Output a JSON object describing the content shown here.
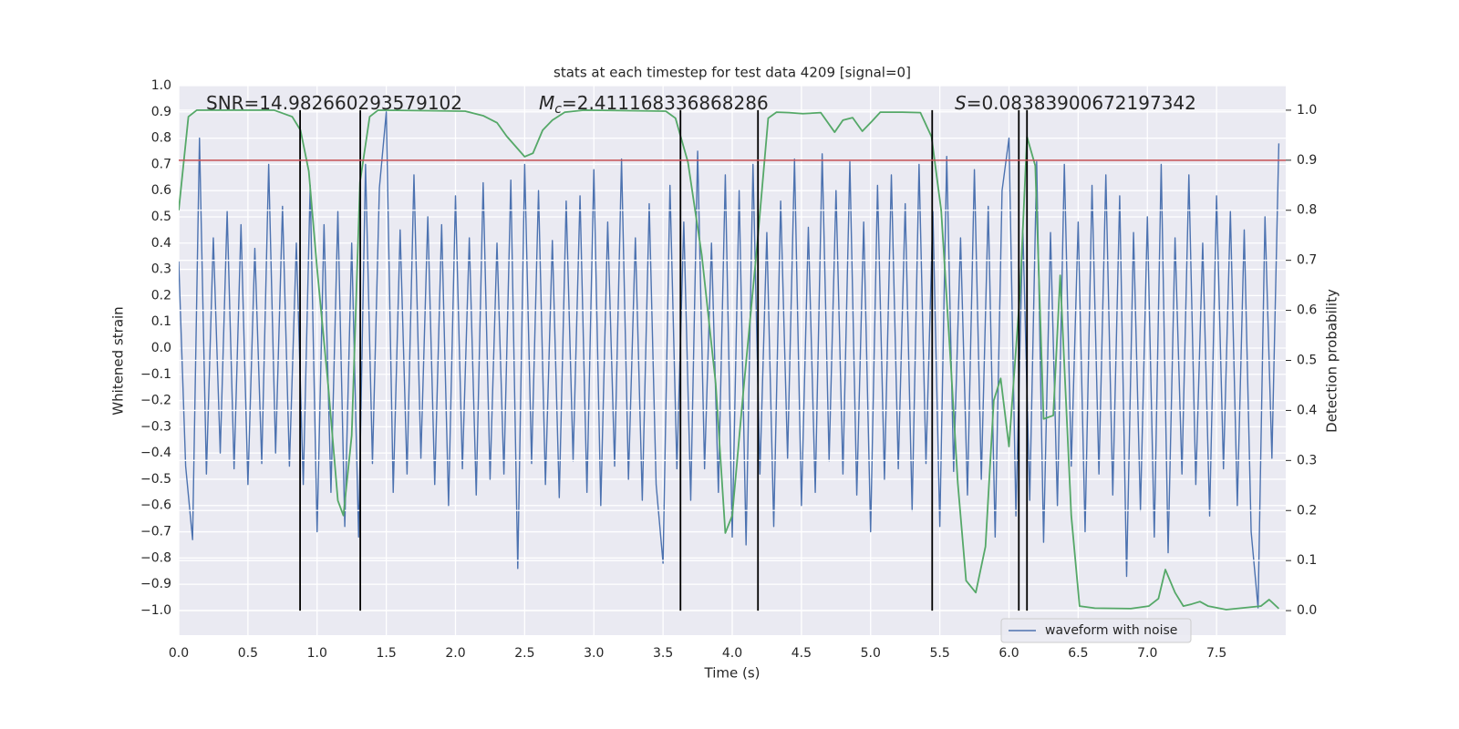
{
  "chart_data": {
    "type": "line",
    "title": "stats at each timestep for test data 4209 [signal=0]",
    "xlabel": "Time (s)",
    "ylabel": "Whitened strain",
    "y2label": "Detection probability",
    "xlim": [
      0,
      8
    ],
    "ylim": [
      -1.094,
      1.0
    ],
    "y2lim": [
      -0.049,
      1.049
    ],
    "grid": true,
    "legend": "best",
    "xticks": [
      {
        "value": 0,
        "label": "0.0"
      },
      0.5,
      {
        "value": 1,
        "label": "1.0"
      },
      1.5,
      {
        "value": 2,
        "label": "2.0"
      },
      2.5,
      {
        "value": 3,
        "label": "3.0"
      },
      3.5,
      {
        "value": 4,
        "label": "4.0"
      },
      4.5,
      {
        "value": 5,
        "label": "5.0"
      },
      5.5,
      {
        "value": 6,
        "label": "6.0"
      },
      6.5,
      {
        "value": 7,
        "label": "7.0"
      },
      7.5
    ],
    "yticks": [
      {
        "value": -1,
        "label": "−1.0"
      },
      {
        "value": -0.9,
        "label": "−0.9"
      },
      {
        "value": -0.8,
        "label": "−0.8"
      },
      {
        "value": -0.7,
        "label": "−0.7"
      },
      {
        "value": -0.6,
        "label": "−0.6"
      },
      {
        "value": -0.5,
        "label": "−0.5"
      },
      {
        "value": -0.4,
        "label": "−0.4"
      },
      {
        "value": -0.3,
        "label": "−0.3"
      },
      {
        "value": -0.2,
        "label": "−0.2"
      },
      {
        "value": -0.1,
        "label": "−0.1"
      },
      {
        "value": 0,
        "label": "0.0"
      },
      0.1,
      0.2,
      0.3,
      0.4,
      0.5,
      0.6,
      0.7,
      0.8,
      0.9,
      {
        "value": 1,
        "label": "1.0"
      }
    ],
    "y2ticks": [
      {
        "value": 0,
        "label": "0.0"
      },
      0.1,
      0.2,
      0.3,
      0.4,
      0.5,
      0.6,
      0.7,
      0.8,
      0.9,
      {
        "value": 1,
        "label": "1.0"
      }
    ],
    "annotations": [
      {
        "parts": [
          "SNR=14.982660293579102"
        ]
      },
      {
        "parts": [
          "M",
          "c",
          "=2.411168336868286"
        ]
      },
      {
        "parts": [
          "S",
          "=0.08383900672197342"
        ]
      }
    ],
    "hlines": [
      {
        "value": 0.9,
        "axis": "y2",
        "color": "#c44e52"
      }
    ],
    "vlines": {
      "color": "#000000",
      "axis": "y2",
      "range": [
        0,
        1
      ],
      "x": [
        0.877,
        1.312,
        3.626,
        4.186,
        5.445,
        6.071,
        6.13
      ]
    },
    "series": [
      {
        "name": "waveform with noise",
        "color": "#4c72b0",
        "x": [
          0,
          0.05,
          0.1,
          0.15,
          0.2,
          0.25,
          0.3,
          0.35,
          0.4,
          0.45,
          0.5,
          0.55,
          0.6,
          0.65,
          0.7,
          0.75,
          0.8,
          0.85,
          0.9,
          0.95,
          1,
          1.05,
          1.1,
          1.15,
          1.2,
          1.25,
          1.3,
          1.35,
          1.4,
          1.45,
          1.5,
          1.55,
          1.6,
          1.65,
          1.7,
          1.75,
          1.8,
          1.85,
          1.9,
          1.95,
          2,
          2.05,
          2.1,
          2.15,
          2.2,
          2.25,
          2.3,
          2.35,
          2.4,
          2.45,
          2.5,
          2.55,
          2.6,
          2.65,
          2.7,
          2.75,
          2.8,
          2.85,
          2.9,
          2.95,
          3,
          3.05,
          3.1,
          3.15,
          3.2,
          3.25,
          3.3,
          3.35,
          3.4,
          3.45,
          3.5,
          3.55,
          3.6,
          3.65,
          3.7,
          3.75,
          3.8,
          3.85,
          3.9,
          3.95,
          4,
          4.05,
          4.1,
          4.15,
          4.2,
          4.25,
          4.3,
          4.35,
          4.4,
          4.45,
          4.5,
          4.55,
          4.6,
          4.65,
          4.7,
          4.75,
          4.8,
          4.85,
          4.9,
          4.95,
          5,
          5.05,
          5.1,
          5.15,
          5.2,
          5.25,
          5.3,
          5.35,
          5.4,
          5.45,
          5.5,
          5.55,
          5.6,
          5.65,
          5.7,
          5.75,
          5.8,
          5.85,
          5.9,
          5.95,
          6,
          6.05,
          6.1,
          6.15,
          6.2,
          6.25,
          6.3,
          6.35,
          6.4,
          6.45,
          6.5,
          6.55,
          6.6,
          6.65,
          6.7,
          6.75,
          6.8,
          6.85,
          6.9,
          6.95,
          7,
          7.05,
          7.1,
          7.15,
          7.2,
          7.25,
          7.3,
          7.35,
          7.4,
          7.45,
          7.5,
          7.55,
          7.6,
          7.65,
          7.7,
          7.75,
          7.8,
          7.85,
          7.9,
          7.95
        ],
        "values": [
          0.33,
          -0.45,
          -0.73,
          0.8,
          -0.48,
          0.42,
          -0.4,
          0.52,
          -0.46,
          0.47,
          -0.52,
          0.38,
          -0.44,
          0.7,
          -0.4,
          0.54,
          -0.45,
          0.4,
          -0.52,
          0.62,
          -0.7,
          0.47,
          -0.55,
          0.52,
          -0.68,
          0.4,
          -0.72,
          0.7,
          -0.44,
          0.61,
          0.9,
          -0.55,
          0.45,
          -0.48,
          0.66,
          -0.42,
          0.5,
          -0.52,
          0.47,
          -0.6,
          0.58,
          -0.46,
          0.42,
          -0.56,
          0.63,
          -0.5,
          0.4,
          -0.48,
          0.64,
          -0.84,
          0.7,
          -0.44,
          0.6,
          -0.52,
          0.41,
          -0.57,
          0.56,
          -0.43,
          0.58,
          -0.55,
          0.68,
          -0.6,
          0.48,
          -0.45,
          0.72,
          -0.5,
          0.42,
          -0.58,
          0.55,
          -0.52,
          -0.82,
          0.62,
          -0.46,
          0.48,
          -0.58,
          0.75,
          -0.46,
          0.4,
          -0.55,
          0.66,
          -0.72,
          0.6,
          -0.75,
          0.7,
          -0.48,
          0.44,
          -0.68,
          0.56,
          -0.42,
          0.72,
          -0.6,
          0.46,
          -0.55,
          0.74,
          -0.43,
          0.6,
          -0.48,
          0.71,
          -0.56,
          0.48,
          -0.7,
          0.62,
          -0.5,
          0.66,
          -0.46,
          0.55,
          -0.62,
          0.7,
          -0.44,
          0.52,
          -0.68,
          0.73,
          -0.47,
          0.42,
          -0.56,
          0.68,
          -0.5,
          0.54,
          -0.72,
          0.6,
          0.8,
          -0.64,
          0.46,
          -0.58,
          0.71,
          -0.74,
          0.44,
          -0.6,
          0.7,
          -0.45,
          0.48,
          -0.7,
          0.62,
          -0.48,
          0.66,
          -0.56,
          0.58,
          -0.87,
          0.44,
          -0.62,
          0.5,
          -0.72,
          0.7,
          -0.78,
          0.42,
          -0.48,
          0.66,
          -0.52,
          0.4,
          -0.64,
          0.58,
          -0.46,
          0.52,
          -0.6,
          0.45,
          -0.7,
          -0.99,
          0.5,
          -0.42,
          0.78
        ]
      },
      {
        "color": "#55a868",
        "axis": "y2",
        "x": [
          0,
          0.07,
          0.13,
          0.42,
          0.69,
          0.82,
          0.88,
          0.94,
          1.0,
          1.08,
          1.15,
          1.19,
          1.25,
          1.31,
          1.38,
          1.44,
          2.07,
          2.2,
          2.3,
          2.37,
          2.5,
          2.56,
          2.63,
          2.7,
          2.79,
          2.93,
          3.52,
          3.59,
          3.68,
          3.78,
          3.88,
          3.95,
          4.0,
          4.08,
          4.18,
          4.26,
          4.32,
          4.41,
          4.51,
          4.64,
          4.74,
          4.8,
          4.87,
          4.94,
          5.01,
          5.07,
          5.23,
          5.36,
          5.44,
          5.51,
          5.58,
          5.63,
          5.69,
          5.76,
          5.83,
          5.89,
          5.94,
          6.0,
          6.08,
          6.13,
          6.19,
          6.25,
          6.32,
          6.37,
          6.45,
          6.51,
          6.62,
          6.88,
          7.01,
          7.08,
          7.13,
          7.2,
          7.26,
          7.32,
          7.38,
          7.44,
          7.57,
          7.82,
          7.88,
          7.95
        ],
        "values": [
          0.8,
          0.987,
          1.0,
          1.0,
          1.0,
          0.987,
          0.96,
          0.878,
          0.683,
          0.45,
          0.22,
          0.19,
          0.35,
          0.856,
          0.987,
          1.0,
          0.998,
          0.989,
          0.975,
          0.948,
          0.907,
          0.914,
          0.96,
          0.98,
          0.996,
          1.0,
          0.998,
          0.984,
          0.896,
          0.71,
          0.455,
          0.155,
          0.19,
          0.437,
          0.73,
          0.984,
          0.996,
          0.995,
          0.993,
          0.995,
          0.956,
          0.98,
          0.985,
          0.958,
          0.978,
          0.996,
          0.996,
          0.995,
          0.947,
          0.8,
          0.49,
          0.255,
          0.06,
          0.036,
          0.128,
          0.42,
          0.464,
          0.328,
          0.637,
          0.947,
          0.889,
          0.383,
          0.39,
          0.67,
          0.19,
          0.009,
          0.005,
          0.004,
          0.009,
          0.024,
          0.082,
          0.036,
          0.009,
          0.013,
          0.018,
          0.009,
          0.002,
          0.009,
          0.022,
          0.004
        ]
      }
    ]
  }
}
